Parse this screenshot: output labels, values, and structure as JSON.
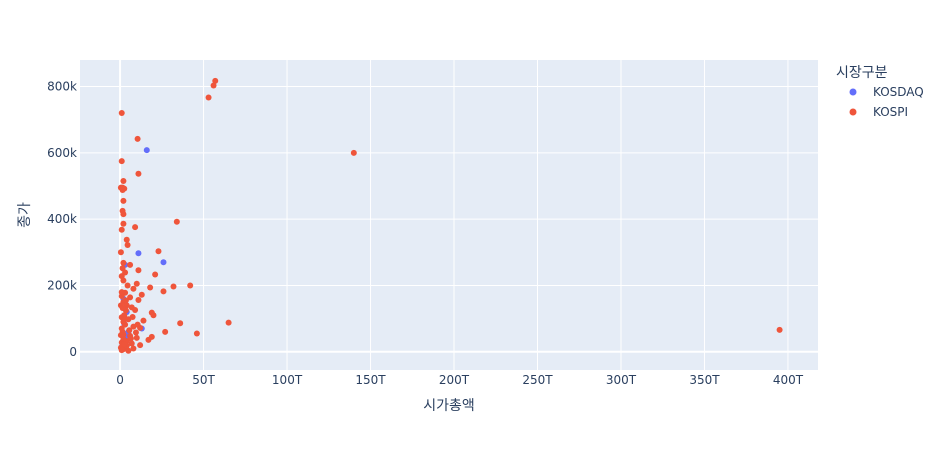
{
  "chart_data": {
    "type": "scatter",
    "title": "",
    "xlabel": "시가총액",
    "ylabel": "종가",
    "xlim": [
      -24000000000000,
      418000000000000
    ],
    "ylim": [
      -55000000,
      880000000
    ],
    "xticks": [
      0,
      50000000000000,
      100000000000000,
      150000000000000,
      200000000000000,
      250000000000000,
      300000000000000,
      350000000000000,
      400000000000000
    ],
    "xtick_labels": [
      "0",
      "50T",
      "100T",
      "150T",
      "200T",
      "250T",
      "300T",
      "350T",
      "400T"
    ],
    "yticks": [
      0,
      200000000,
      400000000,
      600000000,
      800000000
    ],
    "ytick_labels": [
      "0",
      "200k",
      "400k",
      "600k",
      "800k"
    ],
    "grid": true,
    "legend": {
      "title": "시장구분",
      "placement": "right"
    },
    "series": [
      {
        "name": "KOSDAQ",
        "color": "#636efa",
        "points": [
          [
            16000000000000,
            608000000
          ],
          [
            11000000000000,
            297000000
          ],
          [
            26000000000000,
            270000000
          ],
          [
            3000000000000,
            262000000
          ],
          [
            13000000000000,
            70000000
          ],
          [
            1500000000000,
            30000000
          ],
          [
            2500000000000,
            85000000
          ],
          [
            4000000000000,
            120000000
          ],
          [
            3500000000000,
            45000000
          ],
          [
            2000000000000,
            160000000
          ],
          [
            5000000000000,
            60000000
          ],
          [
            1000000000000,
            15000000
          ]
        ]
      },
      {
        "name": "KOSPI",
        "color": "#ef553b",
        "points": [
          [
            57000000000000,
            817000000
          ],
          [
            56000000000000,
            803000000
          ],
          [
            53000000000000,
            767000000
          ],
          [
            1000000000000,
            720000000
          ],
          [
            10500000000000,
            642000000
          ],
          [
            140000000000000,
            600000000
          ],
          [
            1000000000000,
            575000000
          ],
          [
            11000000000000,
            537000000
          ],
          [
            2000000000000,
            515000000
          ],
          [
            500000000000,
            495000000
          ],
          [
            1500000000000,
            495000000
          ],
          [
            2500000000000,
            492000000
          ],
          [
            1500000000000,
            488000000
          ],
          [
            2000000000000,
            455000000
          ],
          [
            1500000000000,
            425000000
          ],
          [
            2000000000000,
            415000000
          ],
          [
            34000000000000,
            392000000
          ],
          [
            2000000000000,
            386000000
          ],
          [
            9000000000000,
            376000000
          ],
          [
            1000000000000,
            368000000
          ],
          [
            4000000000000,
            338000000
          ],
          [
            4500000000000,
            322000000
          ],
          [
            23000000000000,
            303000000
          ],
          [
            500000000000,
            300000000
          ],
          [
            2000000000000,
            268000000
          ],
          [
            6000000000000,
            262000000
          ],
          [
            1500000000000,
            252000000
          ],
          [
            11000000000000,
            246000000
          ],
          [
            3000000000000,
            239000000
          ],
          [
            21000000000000,
            233000000
          ],
          [
            1000000000000,
            228000000
          ],
          [
            2000000000000,
            215000000
          ],
          [
            10000000000000,
            205000000
          ],
          [
            42000000000000,
            200000000
          ],
          [
            32000000000000,
            197000000
          ],
          [
            18000000000000,
            194000000
          ],
          [
            8000000000000,
            190000000
          ],
          [
            26000000000000,
            182000000
          ],
          [
            3000000000000,
            178000000
          ],
          [
            13000000000000,
            172000000
          ],
          [
            1000000000000,
            168000000
          ],
          [
            6000000000000,
            164000000
          ],
          [
            11000000000000,
            156000000
          ],
          [
            2000000000000,
            150000000
          ],
          [
            4000000000000,
            140000000
          ],
          [
            7000000000000,
            134000000
          ],
          [
            9000000000000,
            126000000
          ],
          [
            19000000000000,
            118000000
          ],
          [
            20000000000000,
            110000000
          ],
          [
            1000000000000,
            104000000
          ],
          [
            5000000000000,
            98000000
          ],
          [
            14000000000000,
            94000000
          ],
          [
            65000000000000,
            88000000
          ],
          [
            36000000000000,
            86000000
          ],
          [
            3000000000000,
            82000000
          ],
          [
            8000000000000,
            76000000
          ],
          [
            12000000000000,
            72000000
          ],
          [
            395000000000000,
            66000000
          ],
          [
            27000000000000,
            60000000
          ],
          [
            46000000000000,
            55000000
          ],
          [
            2000000000000,
            52000000
          ],
          [
            6000000000000,
            48000000
          ],
          [
            19000000000000,
            45000000
          ],
          [
            10000000000000,
            42000000
          ],
          [
            17000000000000,
            36000000
          ],
          [
            4000000000000,
            32000000
          ],
          [
            1000000000000,
            28000000
          ],
          [
            7000000000000,
            25000000
          ],
          [
            12000000000000,
            20000000
          ],
          [
            3000000000000,
            16000000
          ],
          [
            500000000000,
            12000000
          ],
          [
            2000000000000,
            8000000
          ],
          [
            1000000000000,
            5000000
          ],
          [
            5000000000000,
            3000000
          ],
          [
            8000000000000,
            10000000
          ],
          [
            1500000000000,
            60000000
          ],
          [
            2500000000000,
            110000000
          ],
          [
            3500000000000,
            125000000
          ],
          [
            500000000000,
            140000000
          ],
          [
            1000000000000,
            180000000
          ],
          [
            4500000000000,
            200000000
          ],
          [
            6500000000000,
            40000000
          ],
          [
            9500000000000,
            58000000
          ],
          [
            2000000000000,
            90000000
          ],
          [
            3000000000000,
            100000000
          ],
          [
            1000000000000,
            70000000
          ],
          [
            4000000000000,
            18000000
          ],
          [
            2000000000000,
            38000000
          ],
          [
            5500000000000,
            65000000
          ],
          [
            7500000000000,
            105000000
          ],
          [
            3500000000000,
            155000000
          ],
          [
            1500000000000,
            132000000
          ],
          [
            10500000000000,
            82000000
          ],
          [
            500000000000,
            50000000
          ],
          [
            2500000000000,
            23000000
          ]
        ]
      }
    ]
  }
}
